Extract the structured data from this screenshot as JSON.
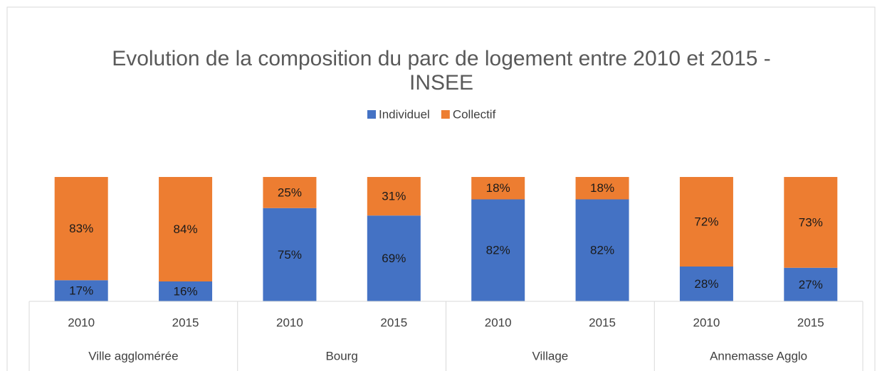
{
  "chart_data": {
    "type": "stacked_bar",
    "title": "Evolution de la composition du parc de logement entre 2010 et 2015 - INSEE",
    "categories": [
      "2010",
      "2015",
      "2010",
      "2015",
      "2010",
      "2015",
      "2010",
      "2015"
    ],
    "groups": [
      "Ville agglomérée",
      "Bourg",
      "Village",
      "Annemasse Agglo"
    ],
    "series": [
      {
        "name": "Individuel",
        "color": "#4472c4",
        "values": [
          17,
          16,
          75,
          69,
          82,
          82,
          28,
          27
        ],
        "value_labels": [
          "17%",
          "16%",
          "75%",
          "69%",
          "82%",
          "82%",
          "28%",
          "27%"
        ]
      },
      {
        "name": "Collectif",
        "color": "#ed7d31",
        "values": [
          83,
          84,
          25,
          31,
          18,
          18,
          72,
          73
        ],
        "value_labels": [
          "83%",
          "84%",
          "25%",
          "31%",
          "18%",
          "18%",
          "72%",
          "73%"
        ]
      }
    ],
    "ylim": [
      0,
      100
    ],
    "legend": "top"
  }
}
